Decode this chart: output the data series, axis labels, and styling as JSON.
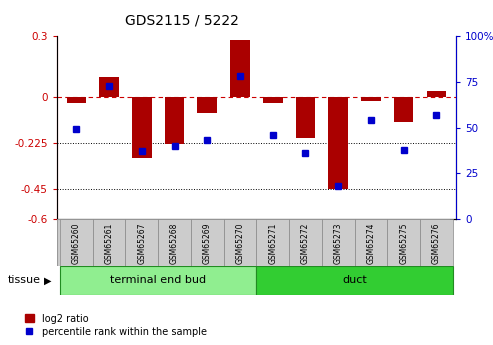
{
  "title": "GDS2115 / 5222",
  "samples": [
    "GSM65260",
    "GSM65261",
    "GSM65267",
    "GSM65268",
    "GSM65269",
    "GSM65270",
    "GSM65271",
    "GSM65272",
    "GSM65273",
    "GSM65274",
    "GSM65275",
    "GSM65276"
  ],
  "log2_ratio": [
    -0.03,
    0.1,
    -0.3,
    -0.23,
    -0.08,
    0.28,
    -0.03,
    -0.2,
    -0.45,
    -0.02,
    -0.12,
    0.03
  ],
  "percentile_rank": [
    49,
    73,
    37,
    40,
    43,
    78,
    46,
    36,
    18,
    54,
    38,
    57
  ],
  "bar_color": "#AA0000",
  "dot_color": "#0000CC",
  "ylim_left": [
    -0.6,
    0.3
  ],
  "ylim_right": [
    0,
    100
  ],
  "yticks_left": [
    0.3,
    0.0,
    -0.225,
    -0.45,
    -0.6
  ],
  "yticks_right": [
    100,
    75,
    50,
    25,
    0
  ],
  "ytick_labels_left": [
    "0.3",
    "0",
    "-0.225",
    "-0.45",
    "-0.6"
  ],
  "ytick_labels_right": [
    "100%",
    "75",
    "50",
    "25",
    "0"
  ],
  "hlines_dashed": [
    0.0
  ],
  "hlines_dotted": [
    -0.225,
    -0.45
  ],
  "groups": [
    {
      "label": "terminal end bud",
      "start": 0,
      "end": 6,
      "color": "#90EE90"
    },
    {
      "label": "duct",
      "start": 6,
      "end": 12,
      "color": "#32CD32"
    }
  ],
  "tissue_label": "tissue",
  "legend_bar_label": "log2 ratio",
  "legend_dot_label": "percentile rank within the sample",
  "background_color": "#FFFFFF",
  "plot_bg_color": "#FFFFFF",
  "tick_color_left": "#CC0000",
  "tick_color_right": "#0000CC",
  "label_box_color": "#CCCCCC",
  "label_box_edge": "#999999",
  "bar_width": 0.6
}
